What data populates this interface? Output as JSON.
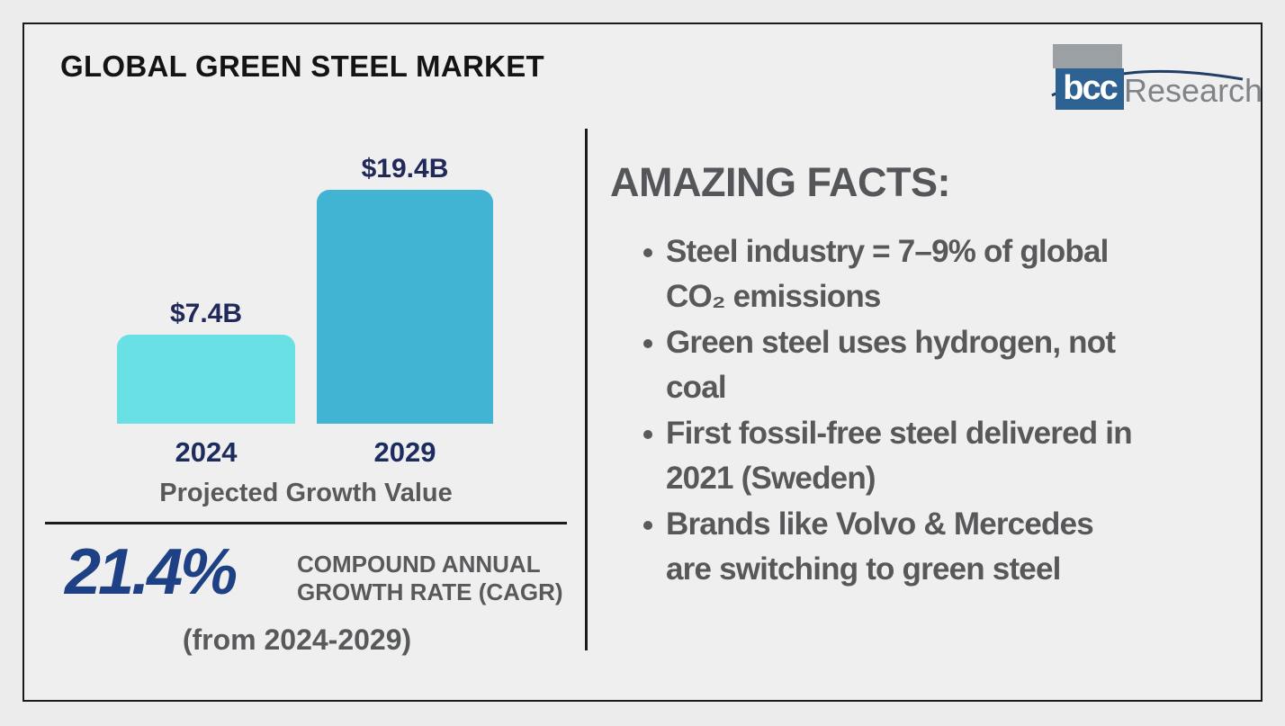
{
  "header": {
    "title": "GLOBAL GREEN STEEL MARKET",
    "logo": {
      "acronym": "bcc",
      "name": "Research"
    }
  },
  "chart_data": {
    "type": "bar",
    "title": "Projected Growth Value",
    "categories": [
      "2024",
      "2029"
    ],
    "values": [
      7.4,
      19.4
    ],
    "value_labels": [
      "$7.4B",
      "$19.4B"
    ],
    "ylim": [
      0,
      19.4
    ],
    "bar_colors": [
      "#68e0e4",
      "#41b4d4"
    ],
    "label_color": "#20295a",
    "axes": "hidden",
    "grid": false,
    "legend": "none"
  },
  "cagr": {
    "value": "21.4%",
    "label": "COMPOUND ANNUAL\nGROWTH RATE (CAGR)",
    "range": "(from 2024-2029)"
  },
  "facts": {
    "heading": "AMAZING FACTS:",
    "items": [
      {
        "text": "Steel industry = 7–9% of global\nCO₂ emissions"
      },
      {
        "text": "Green steel uses hydrogen, not\ncoal"
      },
      {
        "text": "First fossil-free steel delivered in\n2021 (Sweden)"
      },
      {
        "text": "Brands like Volvo & Mercedes\nare switching to green steel"
      }
    ]
  },
  "colors": {
    "background": "#efefef",
    "frame_border": "#1a1a1a",
    "navy_text": "#1d2c5e",
    "accent_blue": "#1d4184",
    "gray_text": "#58595b",
    "logo_blue": "#2d6191",
    "logo_gray": "#9aa0a4"
  }
}
